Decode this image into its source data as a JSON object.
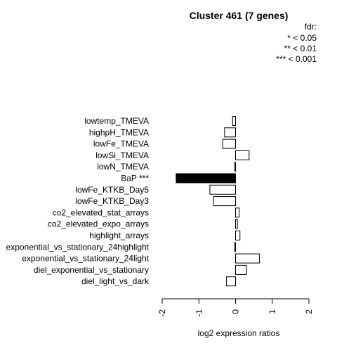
{
  "chart_data": {
    "type": "bar",
    "orientation": "horizontal",
    "title": "Cluster 461 (7 genes)",
    "xlabel": "log2 expression ratios",
    "ylabel": "",
    "xlim": [
      -2,
      2
    ],
    "xticks": [
      "-2",
      "-1",
      "0",
      "1",
      "2"
    ],
    "legend": {
      "title": "fdr:",
      "entries": [
        "* < 0.05",
        "** < 0.01",
        "*** < 0.001"
      ],
      "placement": "top-right"
    },
    "categories": [
      "lowtemp_TMEVA",
      "highpH_TMEVA",
      "lowFe_TMEVA",
      "lowSi_TMEVA",
      "lowN_TMEVA",
      "BaP ***",
      "lowFe_KTKB_Day5",
      "lowFe_KTKB_Day3",
      "co2_elevated_stat_arrays",
      "co2_elevated_expo_arrays",
      "highlight_arrays",
      "exponential_vs_stationary_24highlight",
      "exponential_vs_stationary_24light",
      "diel_exponential_vs_stationary",
      "diel_light_vs_dark"
    ],
    "values": [
      -0.08,
      -0.3,
      -0.35,
      0.37,
      -0.02,
      -1.62,
      -0.7,
      -0.6,
      0.1,
      0.05,
      0.12,
      -0.02,
      0.65,
      0.3,
      -0.25
    ],
    "highlight": [
      false,
      false,
      false,
      false,
      false,
      true,
      false,
      false,
      false,
      false,
      false,
      false,
      false,
      false,
      false
    ],
    "colors": {
      "bar": "#ffffff",
      "highlight_bar": "#000000",
      "stroke": "#000000"
    }
  }
}
